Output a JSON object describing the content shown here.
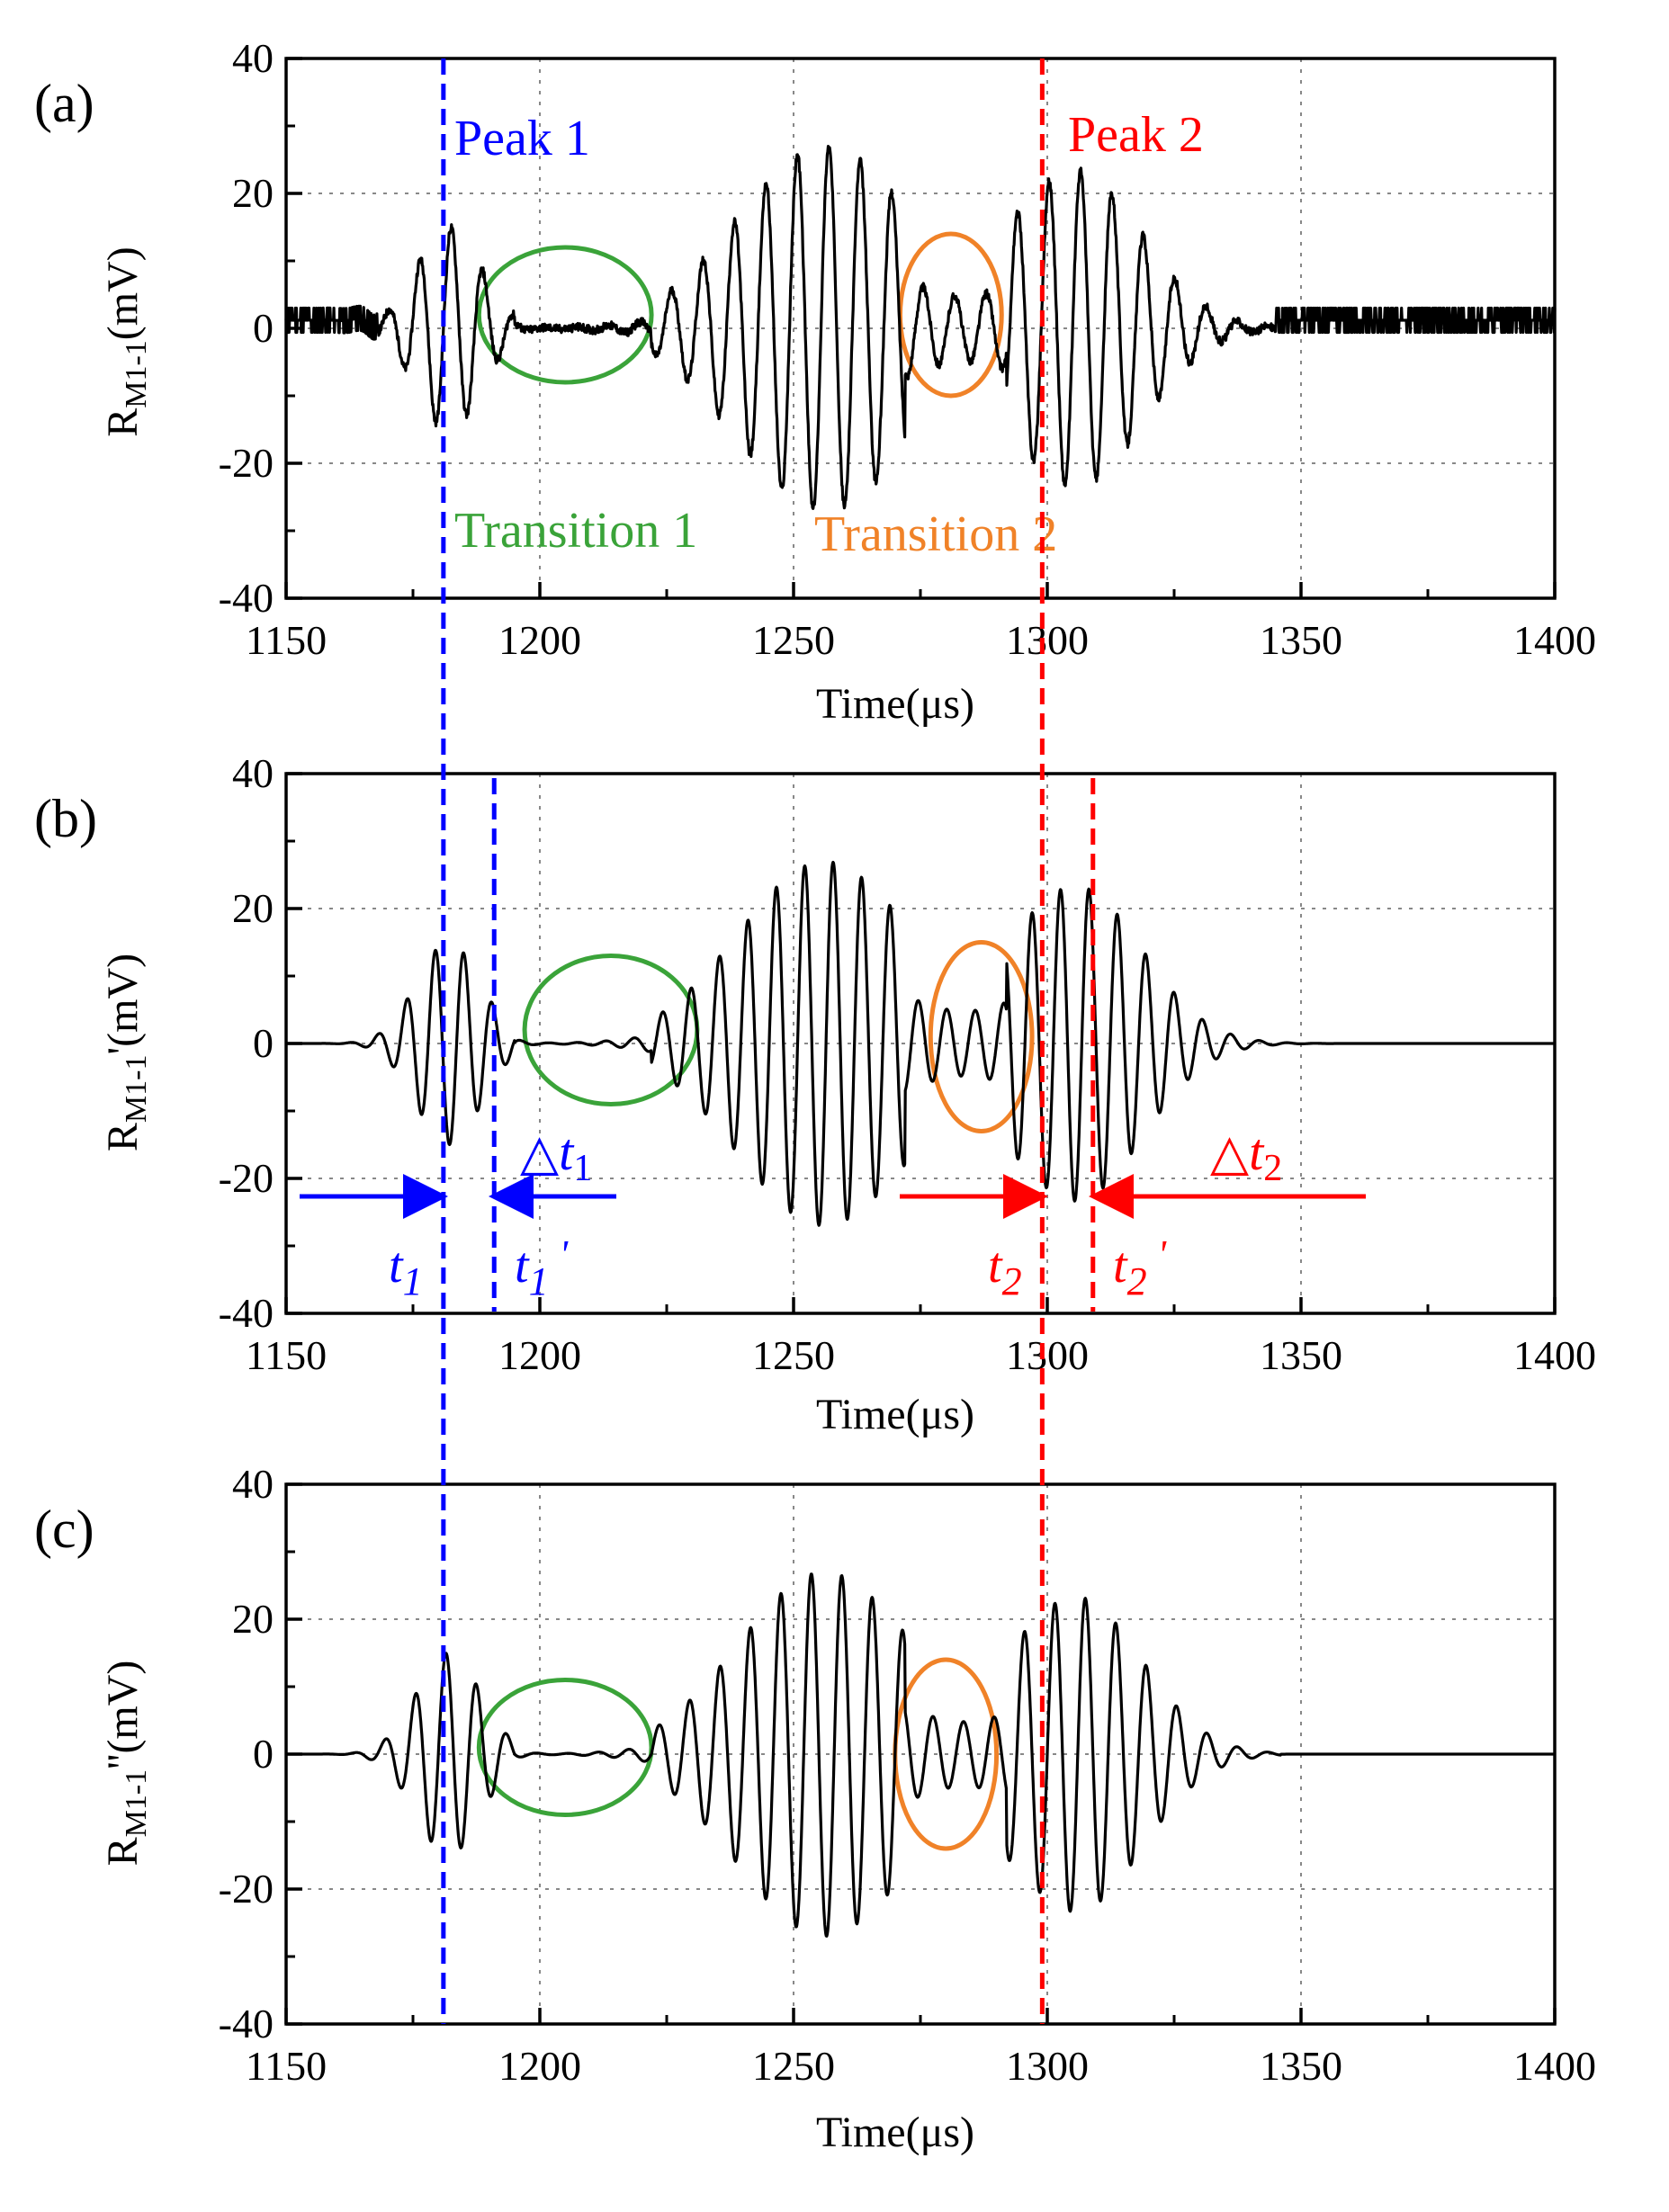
{
  "colors": {
    "signal": "#000000",
    "peak1": "#0000ff",
    "peak2": "#ff0000",
    "transition1": "#3aa339",
    "transition2": "#f08228",
    "grid": "#888888"
  },
  "chart_data": [
    {
      "id": "a",
      "type": "line",
      "panel_label": "(a)",
      "xlabel": "Time(μs)",
      "ylabel": "R",
      "ylabel_sub": "M1-1",
      "ylabel_tail": "(mV)",
      "xlim": [
        1150,
        1400
      ],
      "ylim": [
        -40,
        40
      ],
      "xticks": [
        1150,
        1200,
        1250,
        1300,
        1350,
        1400
      ],
      "yticks": [
        -40,
        -20,
        0,
        20,
        40
      ],
      "xtick_labels": [
        "1150",
        "1200",
        "1250",
        "1300",
        "1350",
        "1400"
      ],
      "ytick_labels": [
        "-40",
        "-20",
        "0",
        "20",
        "40"
      ],
      "grid": true,
      "series": [
        {
          "name": "R_M1-1",
          "period_us": 6.2,
          "noise": "stepped",
          "tail_end_us": 1345
        }
      ],
      "annotations": {
        "peak1_label": "Peak 1",
        "peak2_label": "Peak 2",
        "transition1_label": "Transition 1",
        "transition2_label": "Transition 2"
      },
      "ellipses": [
        {
          "name": "transition-1",
          "center": [
            1205,
            2
          ],
          "radius": [
            17,
            10
          ],
          "color": "transition1"
        },
        {
          "name": "transition-2",
          "center": [
            1281,
            2
          ],
          "radius": [
            10,
            12
          ],
          "color": "transition2"
        }
      ]
    },
    {
      "id": "b",
      "type": "line",
      "panel_label": "(b)",
      "xlabel": "Time(μs)",
      "ylabel": "R",
      "ylabel_sub": "M1-1",
      "ylabel_tail": "'(mV)",
      "xlim": [
        1150,
        1400
      ],
      "ylim": [
        -40,
        40
      ],
      "xticks": [
        1150,
        1200,
        1250,
        1300,
        1350,
        1400
      ],
      "yticks": [
        -40,
        -20,
        0,
        20,
        40
      ],
      "xtick_labels": [
        "1150",
        "1200",
        "1250",
        "1300",
        "1350",
        "1400"
      ],
      "ytick_labels": [
        "-40",
        "-20",
        "0",
        "20",
        "40"
      ],
      "grid": true,
      "series": [
        {
          "name": "R_M1-1'",
          "period_us": 5.6,
          "noise": "smooth",
          "tail_end_us": 1400
        }
      ],
      "annotations": {
        "t1": "t",
        "t1_sub": "1",
        "t1p": "t",
        "t1p_sub": "1",
        "t1p_prime": "'",
        "t2": "t",
        "t2_sub": "2",
        "t2p": "t",
        "t2p_sub": "2",
        "t2p_prime": "'",
        "dt1_delta": "△",
        "dt1": "t",
        "dt1_sub": "1",
        "dt2_delta": "△",
        "dt2": "t",
        "dt2_sub": "2"
      },
      "marker_times": {
        "t1": 1181,
        "t1_prime": 1191,
        "t2": 1299,
        "t2_prime": 1309
      },
      "ellipses": [
        {
          "name": "transition-1",
          "center": [
            1214,
            2
          ],
          "radius": [
            17,
            11
          ],
          "color": "transition1"
        },
        {
          "name": "transition-2",
          "center": [
            1287,
            1
          ],
          "radius": [
            10,
            14
          ],
          "color": "transition2"
        }
      ]
    },
    {
      "id": "c",
      "type": "line",
      "panel_label": "(c)",
      "xlabel": "Time(μs)",
      "ylabel": "R",
      "ylabel_sub": "M1-1",
      "ylabel_tail": "''(mV)",
      "xlim": [
        1150,
        1400
      ],
      "ylim": [
        -40,
        40
      ],
      "xticks": [
        1150,
        1200,
        1250,
        1300,
        1350,
        1400
      ],
      "yticks": [
        -40,
        -20,
        0,
        20,
        40
      ],
      "xtick_labels": [
        "1150",
        "1200",
        "1250",
        "1300",
        "1350",
        "1400"
      ],
      "ytick_labels": [
        "-40",
        "-20",
        "0",
        "20",
        "40"
      ],
      "grid": true,
      "series": [
        {
          "name": "R_M1-1''",
          "period_us": 6.0,
          "noise": "smooth",
          "tail_end_us": 1346
        }
      ],
      "ellipses": [
        {
          "name": "transition-1",
          "center": [
            1205,
            1
          ],
          "radius": [
            17,
            10
          ],
          "color": "transition1"
        },
        {
          "name": "transition-2",
          "center": [
            1280,
            0
          ],
          "radius": [
            10,
            14
          ],
          "color": "transition2"
        }
      ]
    }
  ],
  "peak_lines": {
    "peak1_time": 1181,
    "peak2_time": 1299
  }
}
